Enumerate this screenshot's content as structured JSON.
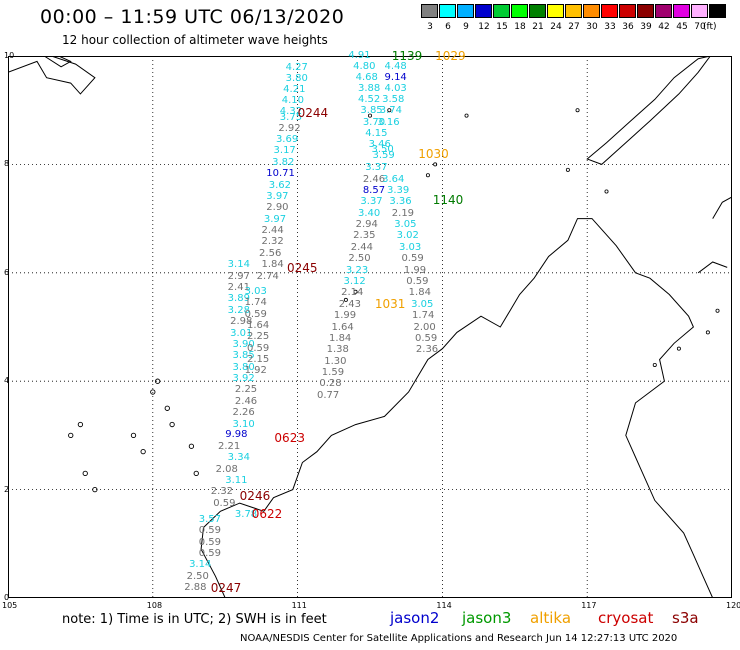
{
  "title": "00:00 – 11:59 UTC 06/13/2020",
  "subtitle": "12 hour collection of altimeter wave heights",
  "legend": {
    "unit": "(ft)",
    "bins": [
      {
        "label": "3",
        "color": "#808080"
      },
      {
        "label": "6",
        "color": "#00ffff"
      },
      {
        "label": "9",
        "color": "#00b0ff"
      },
      {
        "label": "12",
        "color": "#0000cd"
      },
      {
        "label": "15",
        "color": "#00cc33"
      },
      {
        "label": "18",
        "color": "#00ff00"
      },
      {
        "label": "21",
        "color": "#008000"
      },
      {
        "label": "24",
        "color": "#ffff00"
      },
      {
        "label": "27",
        "color": "#ffc000"
      },
      {
        "label": "30",
        "color": "#ff8c00"
      },
      {
        "label": "33",
        "color": "#ff0000"
      },
      {
        "label": "36",
        "color": "#cc0000"
      },
      {
        "label": "39",
        "color": "#8b0000"
      },
      {
        "label": "42",
        "color": "#a0006e"
      },
      {
        "label": "45",
        "color": "#e000e0"
      },
      {
        "label": "70",
        "color": "#ffb0ff"
      },
      {
        "label": "",
        "color": "#000000"
      }
    ]
  },
  "axes": {
    "lon_labels": [
      "105",
      "108",
      "111",
      "114",
      "117",
      "120"
    ],
    "lat_labels": [
      "0",
      "2",
      "4",
      "6",
      "8",
      "10"
    ]
  },
  "colors": {
    "grey": "#707070",
    "cyan": "#1ad0e0",
    "blue": "#0000cc",
    "green": "#007a00",
    "orange": "#f0a000",
    "darkred": "#8b0000",
    "red": "#cc0000"
  },
  "track_values": [
    {
      "v": "4.27",
      "lon": 111.0,
      "lat": 9.78,
      "c": "cyan"
    },
    {
      "v": "3.80",
      "lon": 111.0,
      "lat": 9.58,
      "c": "cyan"
    },
    {
      "v": "4.21",
      "lon": 110.95,
      "lat": 9.38,
      "c": "cyan"
    },
    {
      "v": "4.10",
      "lon": 110.92,
      "lat": 9.17,
      "c": "cyan"
    },
    {
      "v": "4.32",
      "lon": 110.88,
      "lat": 8.97,
      "c": "cyan"
    },
    {
      "v": "3.75",
      "lon": 110.88,
      "lat": 8.86,
      "c": "cyan"
    },
    {
      "v": "2.92",
      "lon": 110.85,
      "lat": 8.66,
      "c": "grey"
    },
    {
      "v": "3.69",
      "lon": 110.8,
      "lat": 8.45,
      "c": "cyan"
    },
    {
      "v": "3.17",
      "lon": 110.75,
      "lat": 8.24,
      "c": "cyan"
    },
    {
      "v": "3.82",
      "lon": 110.72,
      "lat": 8.03,
      "c": "cyan"
    },
    {
      "v": "10.71",
      "lon": 110.6,
      "lat": 7.82,
      "c": "blue"
    },
    {
      "v": "3.62",
      "lon": 110.65,
      "lat": 7.61,
      "c": "cyan"
    },
    {
      "v": "3.97",
      "lon": 110.6,
      "lat": 7.4,
      "c": "cyan"
    },
    {
      "v": "2.90",
      "lon": 110.6,
      "lat": 7.19,
      "c": "grey"
    },
    {
      "v": "3.97",
      "lon": 110.55,
      "lat": 6.98,
      "c": "cyan"
    },
    {
      "v": "2.44",
      "lon": 110.5,
      "lat": 6.77,
      "c": "grey"
    },
    {
      "v": "2.32",
      "lon": 110.5,
      "lat": 6.56,
      "c": "grey"
    },
    {
      "v": "2.56",
      "lon": 110.45,
      "lat": 6.35,
      "c": "grey"
    },
    {
      "v": "1.84",
      "lon": 110.5,
      "lat": 6.14,
      "c": "grey"
    },
    {
      "v": "2.74",
      "lon": 110.4,
      "lat": 5.93,
      "c": "grey"
    },
    {
      "v": "3.14",
      "lon": 109.8,
      "lat": 6.14,
      "c": "cyan"
    },
    {
      "v": "2.97",
      "lon": 109.8,
      "lat": 5.93,
      "c": "grey"
    },
    {
      "v": "2.41",
      "lon": 109.8,
      "lat": 5.72,
      "c": "grey"
    },
    {
      "v": "3.03",
      "lon": 110.15,
      "lat": 5.65,
      "c": "cyan"
    },
    {
      "v": "3.89",
      "lon": 109.8,
      "lat": 5.51,
      "c": "cyan"
    },
    {
      "v": "1.74",
      "lon": 110.15,
      "lat": 5.44,
      "c": "grey"
    },
    {
      "v": "3.28",
      "lon": 109.8,
      "lat": 5.3,
      "c": "cyan"
    },
    {
      "v": "0.59",
      "lon": 110.15,
      "lat": 5.23,
      "c": "grey"
    },
    {
      "v": "2.98",
      "lon": 109.85,
      "lat": 5.09,
      "c": "grey"
    },
    {
      "v": "1.64",
      "lon": 110.2,
      "lat": 5.02,
      "c": "grey"
    },
    {
      "v": "3.01",
      "lon": 109.85,
      "lat": 4.88,
      "c": "cyan"
    },
    {
      "v": "2.25",
      "lon": 110.2,
      "lat": 4.81,
      "c": "grey"
    },
    {
      "v": "3.90",
      "lon": 109.9,
      "lat": 4.67,
      "c": "cyan"
    },
    {
      "v": "0.59",
      "lon": 110.2,
      "lat": 4.6,
      "c": "grey"
    },
    {
      "v": "3.85",
      "lon": 109.9,
      "lat": 4.46,
      "c": "cyan"
    },
    {
      "v": "2.15",
      "lon": 110.2,
      "lat": 4.39,
      "c": "grey"
    },
    {
      "v": "3.80",
      "lon": 109.9,
      "lat": 4.25,
      "c": "cyan"
    },
    {
      "v": "1.92",
      "lon": 110.15,
      "lat": 4.18,
      "c": "grey"
    },
    {
      "v": "3.92",
      "lon": 109.9,
      "lat": 4.04,
      "c": "cyan"
    },
    {
      "v": "2.25",
      "lon": 109.95,
      "lat": 3.83,
      "c": "grey"
    },
    {
      "v": "2.46",
      "lon": 109.95,
      "lat": 3.62,
      "c": "grey"
    },
    {
      "v": "2.26",
      "lon": 109.9,
      "lat": 3.41,
      "c": "grey"
    },
    {
      "v": "3.10",
      "lon": 109.9,
      "lat": 3.2,
      "c": "cyan"
    },
    {
      "v": "9.98",
      "lon": 109.75,
      "lat": 3.0,
      "c": "blue"
    },
    {
      "v": "2.21",
      "lon": 109.6,
      "lat": 2.79,
      "c": "grey"
    },
    {
      "v": "3.34",
      "lon": 109.8,
      "lat": 2.58,
      "c": "cyan"
    },
    {
      "v": "2.08",
      "lon": 109.55,
      "lat": 2.37,
      "c": "grey"
    },
    {
      "v": "3.11",
      "lon": 109.75,
      "lat": 2.16,
      "c": "cyan"
    },
    {
      "v": "2.32",
      "lon": 109.45,
      "lat": 1.95,
      "c": "grey"
    },
    {
      "v": "0.59",
      "lon": 109.5,
      "lat": 1.74,
      "c": "grey"
    },
    {
      "v": "3.78",
      "lon": 109.95,
      "lat": 1.53,
      "c": "cyan"
    },
    {
      "v": "3.57",
      "lon": 109.2,
      "lat": 1.44,
      "c": "cyan"
    },
    {
      "v": "0.59",
      "lon": 109.2,
      "lat": 1.23,
      "c": "grey"
    },
    {
      "v": "0.59",
      "lon": 109.2,
      "lat": 1.02,
      "c": "grey"
    },
    {
      "v": "0.59",
      "lon": 109.2,
      "lat": 0.81,
      "c": "grey"
    },
    {
      "v": "3.14",
      "lon": 109.0,
      "lat": 0.6,
      "c": "cyan"
    },
    {
      "v": "2.50",
      "lon": 108.95,
      "lat": 0.39,
      "c": "grey"
    },
    {
      "v": "2.88",
      "lon": 108.9,
      "lat": 0.18,
      "c": "grey"
    },
    {
      "v": "4.91",
      "lon": 112.3,
      "lat": 10.0,
      "c": "cyan"
    },
    {
      "v": "4.80",
      "lon": 112.4,
      "lat": 9.8,
      "c": "cyan"
    },
    {
      "v": "4.68",
      "lon": 112.45,
      "lat": 9.6,
      "c": "cyan"
    },
    {
      "v": "3.88",
      "lon": 112.5,
      "lat": 9.4,
      "c": "cyan"
    },
    {
      "v": "4.52",
      "lon": 112.5,
      "lat": 9.19,
      "c": "cyan"
    },
    {
      "v": "3.85",
      "lon": 112.55,
      "lat": 8.98,
      "c": "cyan"
    },
    {
      "v": "3.70",
      "lon": 112.6,
      "lat": 8.77,
      "c": "cyan"
    },
    {
      "v": "4.15",
      "lon": 112.65,
      "lat": 8.56,
      "c": "cyan"
    },
    {
      "v": "3.46",
      "lon": 112.72,
      "lat": 8.36,
      "c": "cyan"
    },
    {
      "v": "3.50",
      "lon": 112.78,
      "lat": 8.26,
      "c": "cyan"
    },
    {
      "v": "3.59",
      "lon": 112.8,
      "lat": 8.15,
      "c": "cyan"
    },
    {
      "v": "3.37",
      "lon": 112.65,
      "lat": 7.93,
      "c": "cyan"
    },
    {
      "v": "2.46",
      "lon": 112.6,
      "lat": 7.72,
      "c": "grey"
    },
    {
      "v": "8.57",
      "lon": 112.6,
      "lat": 7.51,
      "c": "blue"
    },
    {
      "v": "3.37",
      "lon": 112.55,
      "lat": 7.3,
      "c": "cyan"
    },
    {
      "v": "3.40",
      "lon": 112.5,
      "lat": 7.09,
      "c": "cyan"
    },
    {
      "v": "2.94",
      "lon": 112.45,
      "lat": 6.88,
      "c": "grey"
    },
    {
      "v": "2.35",
      "lon": 112.4,
      "lat": 6.67,
      "c": "grey"
    },
    {
      "v": "2.44",
      "lon": 112.35,
      "lat": 6.46,
      "c": "grey"
    },
    {
      "v": "2.50",
      "lon": 112.3,
      "lat": 6.25,
      "c": "grey"
    },
    {
      "v": "3.23",
      "lon": 112.25,
      "lat": 6.04,
      "c": "cyan"
    },
    {
      "v": "3.12",
      "lon": 112.2,
      "lat": 5.83,
      "c": "cyan"
    },
    {
      "v": "2.14",
      "lon": 112.15,
      "lat": 5.62,
      "c": "grey"
    },
    {
      "v": "2.43",
      "lon": 112.1,
      "lat": 5.41,
      "c": "grey"
    },
    {
      "v": "1.99",
      "lon": 112.0,
      "lat": 5.2,
      "c": "grey"
    },
    {
      "v": "1.64",
      "lon": 111.95,
      "lat": 4.99,
      "c": "grey"
    },
    {
      "v": "1.84",
      "lon": 111.9,
      "lat": 4.78,
      "c": "grey"
    },
    {
      "v": "1.38",
      "lon": 111.85,
      "lat": 4.57,
      "c": "grey"
    },
    {
      "v": "1.30",
      "lon": 111.8,
      "lat": 4.36,
      "c": "grey"
    },
    {
      "v": "1.59",
      "lon": 111.75,
      "lat": 4.15,
      "c": "grey"
    },
    {
      "v": "0.28",
      "lon": 111.7,
      "lat": 3.94,
      "c": "grey"
    },
    {
      "v": "0.77",
      "lon": 111.65,
      "lat": 3.73,
      "c": "grey"
    },
    {
      "v": "4.48",
      "lon": 113.05,
      "lat": 9.8,
      "c": "cyan"
    },
    {
      "v": "9.14",
      "lon": 113.05,
      "lat": 9.6,
      "c": "blue"
    },
    {
      "v": "4.03",
      "lon": 113.05,
      "lat": 9.4,
      "c": "cyan"
    },
    {
      "v": "3.58",
      "lon": 113.0,
      "lat": 9.19,
      "c": "cyan"
    },
    {
      "v": "3.74",
      "lon": 112.95,
      "lat": 8.98,
      "c": "cyan"
    },
    {
      "v": "3.16",
      "lon": 112.9,
      "lat": 8.77,
      "c": "cyan"
    },
    {
      "v": "3.64",
      "lon": 113.0,
      "lat": 7.72,
      "c": "cyan"
    },
    {
      "v": "3.39",
      "lon": 113.1,
      "lat": 7.51,
      "c": "cyan"
    },
    {
      "v": "3.36",
      "lon": 113.15,
      "lat": 7.3,
      "c": "cyan"
    },
    {
      "v": "2.19",
      "lon": 113.2,
      "lat": 7.09,
      "c": "grey"
    },
    {
      "v": "3.05",
      "lon": 113.25,
      "lat": 6.88,
      "c": "cyan"
    },
    {
      "v": "3.02",
      "lon": 113.3,
      "lat": 6.67,
      "c": "cyan"
    },
    {
      "v": "3.03",
      "lon": 113.35,
      "lat": 6.46,
      "c": "cyan"
    },
    {
      "v": "0.59",
      "lon": 113.4,
      "lat": 6.25,
      "c": "grey"
    },
    {
      "v": "1.99",
      "lon": 113.45,
      "lat": 6.04,
      "c": "grey"
    },
    {
      "v": "0.59",
      "lon": 113.5,
      "lat": 5.83,
      "c": "grey"
    },
    {
      "v": "1.84",
      "lon": 113.55,
      "lat": 5.62,
      "c": "grey"
    },
    {
      "v": "3.05",
      "lon": 113.6,
      "lat": 5.41,
      "c": "cyan"
    },
    {
      "v": "1.74",
      "lon": 113.62,
      "lat": 5.2,
      "c": "grey"
    },
    {
      "v": "2.00",
      "lon": 113.65,
      "lat": 4.99,
      "c": "grey"
    },
    {
      "v": "0.59",
      "lon": 113.68,
      "lat": 4.78,
      "c": "grey"
    },
    {
      "v": "2.36",
      "lon": 113.7,
      "lat": 4.57,
      "c": "grey"
    }
  ],
  "pass_times": [
    {
      "t": "0244",
      "lon": 111.0,
      "lat": 8.95,
      "c": "darkred"
    },
    {
      "t": "0245",
      "lon": 110.78,
      "lat": 6.08,
      "c": "darkred"
    },
    {
      "t": "0623",
      "lon": 110.52,
      "lat": 2.95,
      "c": "red"
    },
    {
      "t": "0246",
      "lon": 109.8,
      "lat": 1.88,
      "c": "darkred"
    },
    {
      "t": "0622",
      "lon": 110.05,
      "lat": 1.55,
      "c": "red"
    },
    {
      "t": "0247",
      "lon": 109.2,
      "lat": 0.18,
      "c": "darkred"
    },
    {
      "t": "1139",
      "lon": 112.95,
      "lat": 10.0,
      "c": "green"
    },
    {
      "t": "1029",
      "lon": 113.85,
      "lat": 10.0,
      "c": "orange"
    },
    {
      "t": "1030",
      "lon": 113.5,
      "lat": 8.2,
      "c": "orange"
    },
    {
      "t": "1140",
      "lon": 113.8,
      "lat": 7.35,
      "c": "green"
    },
    {
      "t": "1031",
      "lon": 112.6,
      "lat": 5.42,
      "c": "orange"
    }
  ],
  "note": "note:  1) Time is in UTC;  2) SWH is in feet",
  "missions": [
    {
      "name": "jason2",
      "color": "#0000cc"
    },
    {
      "name": "jason3",
      "color": "#009900"
    },
    {
      "name": "altika",
      "color": "#f0a000"
    },
    {
      "name": "cryosat",
      "color": "#cc0000"
    },
    {
      "name": "s3a",
      "color": "#8b0000"
    }
  ],
  "credit": "NOAA/NESDIS Center for Satellite Applications and Research    Jun 14 12:27:13 UTC 2020"
}
